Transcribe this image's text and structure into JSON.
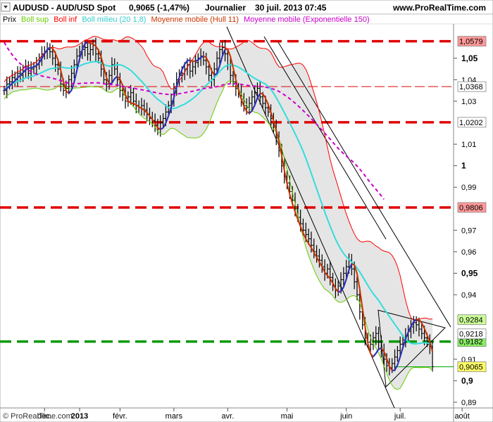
{
  "header": {
    "symbol": "AUDUSD - AUD/USD Spot",
    "quote": "0,9065 (-1,47%)",
    "period": "Journalier",
    "datetime": "30 juil. 2013 07:45",
    "site": "www.ProRealTime.com"
  },
  "legend": [
    {
      "label": "Prix",
      "color": "#000000"
    },
    {
      "label": "Boll sup",
      "color": "#66cc00"
    },
    {
      "label": "Boll inf",
      "color": "#ff0000"
    },
    {
      "label": "Boll milieu (20 1,8)",
      "color": "#33dddd"
    },
    {
      "label": "Moyenne mobile (Hull 11)",
      "color": "#cc3300"
    },
    {
      "label": "Moyenne mobile (Exponentielle 150)",
      "color": "#cc00cc"
    }
  ],
  "footer": {
    "copyright": "© ProRealTime.com"
  },
  "chart_data": {
    "type": "line",
    "ylim": [
      0.888,
      1.064
    ],
    "y_ticks": [
      {
        "v": 1.05,
        "t": "1,05",
        "bold": true
      },
      {
        "v": 1.04,
        "t": "1,04"
      },
      {
        "v": 1.03,
        "t": "1,03"
      },
      {
        "v": 1.01,
        "t": "1,01"
      },
      {
        "v": 1.0,
        "t": "1",
        "bold": true
      },
      {
        "v": 0.99,
        "t": "0,99"
      },
      {
        "v": 0.97,
        "t": "0,97"
      },
      {
        "v": 0.96,
        "t": "0,96"
      },
      {
        "v": 0.95,
        "t": "0,95",
        "bold": true
      },
      {
        "v": 0.94,
        "t": "0,94"
      },
      {
        "v": 0.91,
        "t": "0,91"
      },
      {
        "v": 0.9,
        "t": "0,9",
        "bold": true
      },
      {
        "v": 0.89,
        "t": "0,89"
      }
    ],
    "x_ticks": [
      {
        "i": 15,
        "t": "déc."
      },
      {
        "i": 28,
        "t": "2013",
        "bold": true
      },
      {
        "i": 43,
        "t": "févr."
      },
      {
        "i": 63,
        "t": "mars"
      },
      {
        "i": 83,
        "t": "avr."
      },
      {
        "i": 105,
        "t": "mai"
      },
      {
        "i": 127,
        "t": "juin"
      },
      {
        "i": 147,
        "t": "juil."
      },
      {
        "i": 170,
        "t": "août"
      }
    ],
    "levels": [
      {
        "v": 1.0579,
        "t": "1,0579",
        "color": "#e00000",
        "style": "thick",
        "box": "#ff9999"
      },
      {
        "v": 1.0368,
        "t": "1,0368",
        "color": "#e00000",
        "style": "thin",
        "box": "#ffffff"
      },
      {
        "v": 1.0202,
        "t": "1,0202",
        "color": "#e00000",
        "style": "thick",
        "box": "#ffffff"
      },
      {
        "v": 0.9806,
        "t": "0,9806",
        "color": "#e00000",
        "style": "thick",
        "box": "#ff9999"
      },
      {
        "v": 0.9182,
        "t": "0,9182",
        "color": "#009900",
        "style": "thick",
        "box": "#88ee66"
      }
    ],
    "value_boxes": [
      {
        "v": 0.9284,
        "t": "0,9284",
        "box": "#ccff99"
      },
      {
        "v": 0.9218,
        "t": "0,9218",
        "box": "#ffffff",
        "text_color": "#cc0000"
      },
      {
        "v": 0.9065,
        "t": "0,9065",
        "box": "#ffff66"
      }
    ],
    "series": [
      {
        "name": "Prix",
        "close": [
          1.035,
          1.038,
          1.039,
          1.041,
          1.04,
          1.043,
          1.042,
          1.044,
          1.046,
          1.043,
          1.045,
          1.046,
          1.047,
          1.05,
          1.052,
          1.053,
          1.054,
          1.053,
          1.05,
          1.047,
          1.045,
          1.038,
          1.035,
          1.036,
          1.04,
          1.043,
          1.047,
          1.051,
          1.053,
          1.054,
          1.055,
          1.052,
          1.054,
          1.056,
          1.052,
          1.05,
          1.045,
          1.04,
          1.038,
          1.042,
          1.047,
          1.045,
          1.04,
          1.035,
          1.033,
          1.03,
          1.032,
          1.034,
          1.03,
          1.028,
          1.027,
          1.028,
          1.026,
          1.024,
          1.022,
          1.021,
          1.019,
          1.017,
          1.02,
          1.022,
          1.025,
          1.028,
          1.03,
          1.036,
          1.04,
          1.042,
          1.043,
          1.045,
          1.047,
          1.044,
          1.046,
          1.048,
          1.05,
          1.051,
          1.049,
          1.046,
          1.042,
          1.04,
          1.045,
          1.05,
          1.054,
          1.055,
          1.052,
          1.047,
          1.042,
          1.039,
          1.036,
          1.034,
          1.031,
          1.028,
          1.027,
          1.029,
          1.032,
          1.034,
          1.036,
          1.032,
          1.029,
          1.027,
          1.025,
          1.022,
          1.018,
          1.013,
          1.007,
          1.0,
          0.995,
          0.992,
          0.988,
          0.984,
          0.98,
          0.976,
          0.973,
          0.97,
          0.968,
          0.966,
          0.963,
          0.96,
          0.958,
          0.956,
          0.953,
          0.95,
          0.952,
          0.948,
          0.944,
          0.942,
          0.944,
          0.947,
          0.95,
          0.953,
          0.956,
          0.952,
          0.946,
          0.94,
          0.932,
          0.926,
          0.92,
          0.918,
          0.917,
          0.92,
          0.922,
          0.918,
          0.914,
          0.91,
          0.907,
          0.906,
          0.908,
          0.911,
          0.914,
          0.917,
          0.919,
          0.921,
          0.923,
          0.925,
          0.927,
          0.926,
          0.924,
          0.922,
          0.92,
          0.918,
          0.916,
          0.9065
        ]
      },
      {
        "name": "Boll sup",
        "color": "#66cc00"
      },
      {
        "name": "Boll inf",
        "color": "#ff0000"
      },
      {
        "name": "Boll milieu (20 1,8)",
        "color": "#33dddd",
        "period": 20,
        "k": 1.8
      },
      {
        "name": "Moyenne mobile (Hull 11)",
        "color": "#cc3300",
        "period": 11
      },
      {
        "name": "Moyenne mobile (Exponentielle 150)",
        "color": "#cc00cc",
        "period": 150
      }
    ]
  }
}
